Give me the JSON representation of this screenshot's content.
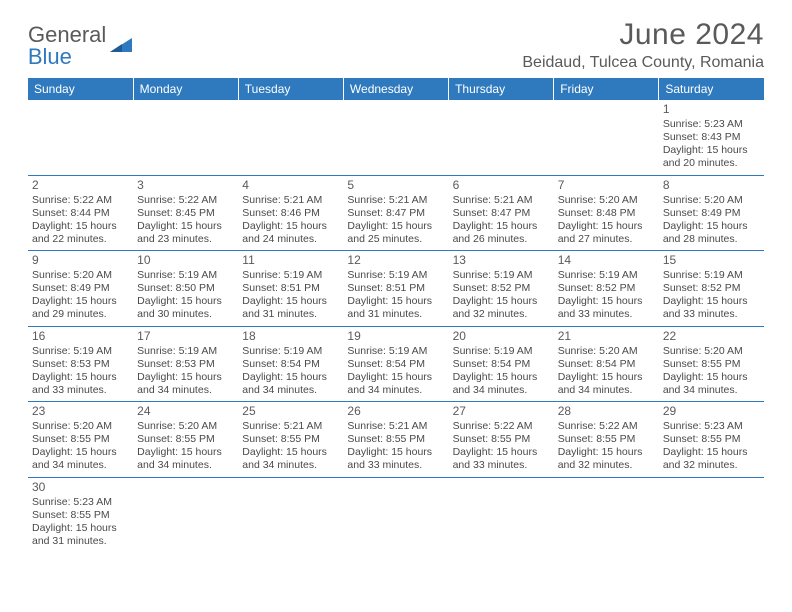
{
  "brand": {
    "name1": "General",
    "name2": "Blue"
  },
  "title": "June 2024",
  "location": "Beidaud, Tulcea County, Romania",
  "colors": {
    "header_bg": "#2f7abf",
    "header_text": "#ffffff",
    "border": "#2f7abf",
    "text": "#4a4a4a",
    "title_text": "#5a5a5a"
  },
  "weekdays": [
    "Sunday",
    "Monday",
    "Tuesday",
    "Wednesday",
    "Thursday",
    "Friday",
    "Saturday"
  ],
  "weeks": [
    [
      null,
      null,
      null,
      null,
      null,
      null,
      {
        "n": "1",
        "sr": "5:23 AM",
        "ss": "8:43 PM",
        "dl": "15 hours and 20 minutes."
      }
    ],
    [
      {
        "n": "2",
        "sr": "5:22 AM",
        "ss": "8:44 PM",
        "dl": "15 hours and 22 minutes."
      },
      {
        "n": "3",
        "sr": "5:22 AM",
        "ss": "8:45 PM",
        "dl": "15 hours and 23 minutes."
      },
      {
        "n": "4",
        "sr": "5:21 AM",
        "ss": "8:46 PM",
        "dl": "15 hours and 24 minutes."
      },
      {
        "n": "5",
        "sr": "5:21 AM",
        "ss": "8:47 PM",
        "dl": "15 hours and 25 minutes."
      },
      {
        "n": "6",
        "sr": "5:21 AM",
        "ss": "8:47 PM",
        "dl": "15 hours and 26 minutes."
      },
      {
        "n": "7",
        "sr": "5:20 AM",
        "ss": "8:48 PM",
        "dl": "15 hours and 27 minutes."
      },
      {
        "n": "8",
        "sr": "5:20 AM",
        "ss": "8:49 PM",
        "dl": "15 hours and 28 minutes."
      }
    ],
    [
      {
        "n": "9",
        "sr": "5:20 AM",
        "ss": "8:49 PM",
        "dl": "15 hours and 29 minutes."
      },
      {
        "n": "10",
        "sr": "5:19 AM",
        "ss": "8:50 PM",
        "dl": "15 hours and 30 minutes."
      },
      {
        "n": "11",
        "sr": "5:19 AM",
        "ss": "8:51 PM",
        "dl": "15 hours and 31 minutes."
      },
      {
        "n": "12",
        "sr": "5:19 AM",
        "ss": "8:51 PM",
        "dl": "15 hours and 31 minutes."
      },
      {
        "n": "13",
        "sr": "5:19 AM",
        "ss": "8:52 PM",
        "dl": "15 hours and 32 minutes."
      },
      {
        "n": "14",
        "sr": "5:19 AM",
        "ss": "8:52 PM",
        "dl": "15 hours and 33 minutes."
      },
      {
        "n": "15",
        "sr": "5:19 AM",
        "ss": "8:52 PM",
        "dl": "15 hours and 33 minutes."
      }
    ],
    [
      {
        "n": "16",
        "sr": "5:19 AM",
        "ss": "8:53 PM",
        "dl": "15 hours and 33 minutes."
      },
      {
        "n": "17",
        "sr": "5:19 AM",
        "ss": "8:53 PM",
        "dl": "15 hours and 34 minutes."
      },
      {
        "n": "18",
        "sr": "5:19 AM",
        "ss": "8:54 PM",
        "dl": "15 hours and 34 minutes."
      },
      {
        "n": "19",
        "sr": "5:19 AM",
        "ss": "8:54 PM",
        "dl": "15 hours and 34 minutes."
      },
      {
        "n": "20",
        "sr": "5:19 AM",
        "ss": "8:54 PM",
        "dl": "15 hours and 34 minutes."
      },
      {
        "n": "21",
        "sr": "5:20 AM",
        "ss": "8:54 PM",
        "dl": "15 hours and 34 minutes."
      },
      {
        "n": "22",
        "sr": "5:20 AM",
        "ss": "8:55 PM",
        "dl": "15 hours and 34 minutes."
      }
    ],
    [
      {
        "n": "23",
        "sr": "5:20 AM",
        "ss": "8:55 PM",
        "dl": "15 hours and 34 minutes."
      },
      {
        "n": "24",
        "sr": "5:20 AM",
        "ss": "8:55 PM",
        "dl": "15 hours and 34 minutes."
      },
      {
        "n": "25",
        "sr": "5:21 AM",
        "ss": "8:55 PM",
        "dl": "15 hours and 34 minutes."
      },
      {
        "n": "26",
        "sr": "5:21 AM",
        "ss": "8:55 PM",
        "dl": "15 hours and 33 minutes."
      },
      {
        "n": "27",
        "sr": "5:22 AM",
        "ss": "8:55 PM",
        "dl": "15 hours and 33 minutes."
      },
      {
        "n": "28",
        "sr": "5:22 AM",
        "ss": "8:55 PM",
        "dl": "15 hours and 32 minutes."
      },
      {
        "n": "29",
        "sr": "5:23 AM",
        "ss": "8:55 PM",
        "dl": "15 hours and 32 minutes."
      }
    ],
    [
      {
        "n": "30",
        "sr": "5:23 AM",
        "ss": "8:55 PM",
        "dl": "15 hours and 31 minutes."
      },
      null,
      null,
      null,
      null,
      null,
      null
    ]
  ],
  "labels": {
    "sunrise": "Sunrise: ",
    "sunset": "Sunset: ",
    "daylight": "Daylight: "
  }
}
